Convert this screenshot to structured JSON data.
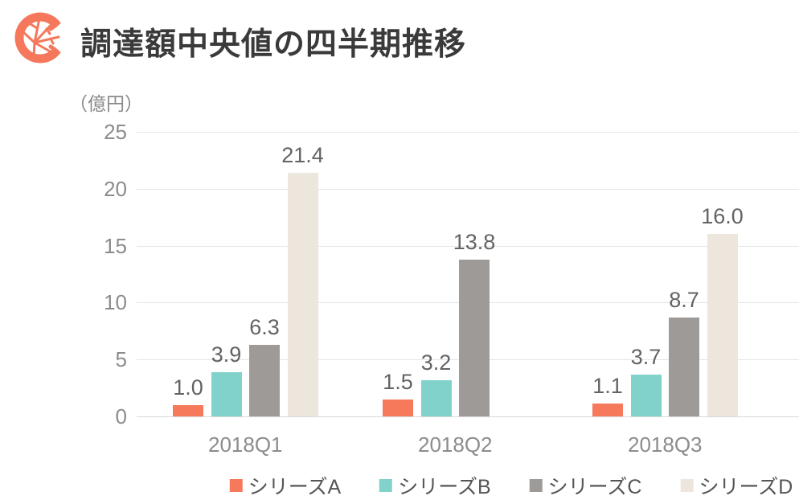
{
  "header": {
    "title": "調達額中央値の四半期推移",
    "logo": "coral-c-leaf-logo"
  },
  "chart_data": {
    "type": "bar",
    "title": "調達額中央値の四半期推移",
    "unit_label": "（億円）",
    "categories": [
      "2018Q1",
      "2018Q2",
      "2018Q3"
    ],
    "series": [
      {
        "name": "シリーズA",
        "color": "#F6795B",
        "values": [
          1.0,
          1.5,
          1.1
        ]
      },
      {
        "name": "シリーズB",
        "color": "#82D2CC",
        "values": [
          3.9,
          3.2,
          3.7
        ]
      },
      {
        "name": "シリーズC",
        "color": "#9D9A97",
        "values": [
          6.3,
          13.8,
          8.7
        ]
      },
      {
        "name": "シリーズD",
        "color": "#EDE6DC",
        "values": [
          21.4,
          null,
          16.0
        ]
      }
    ],
    "ylim": [
      0,
      25
    ],
    "yticks": [
      0,
      5,
      10,
      15,
      20,
      25
    ],
    "grid": "horizontal",
    "value_labels": true,
    "value_label_decimals": 1,
    "legend_position": "bottom"
  },
  "colors": {
    "title_text": "#3a3a3a",
    "axis_text": "#8c8c8c",
    "value_label_text": "#636363",
    "legend_text": "#555555",
    "gridline": "#e5e5e5",
    "logo": "#F5785C",
    "background": "#ffffff"
  }
}
